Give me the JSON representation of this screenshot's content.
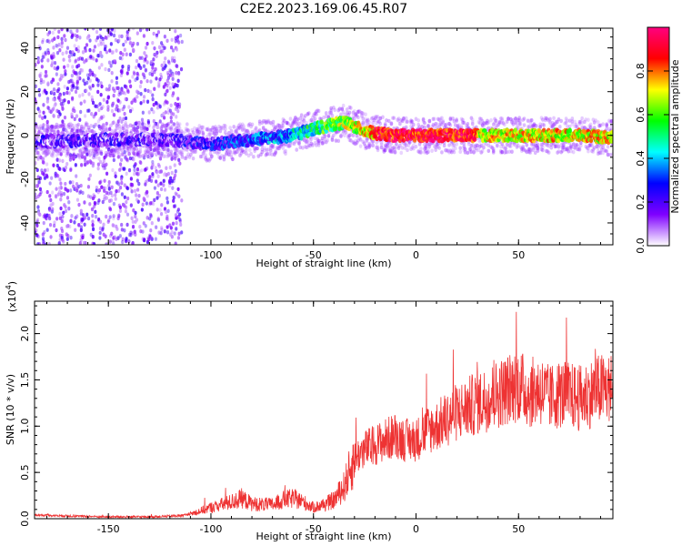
{
  "title": "C2E2.2023.169.06.45.R07",
  "chart_data": [
    {
      "type": "heatmap",
      "xlabel": "Height of straight line (km)",
      "ylabel": "Frequency (Hz)",
      "xlim": [
        -186,
        96
      ],
      "ylim": [
        -50,
        49
      ],
      "x_ticks": [
        -150,
        -100,
        -50,
        0,
        50
      ],
      "x_tick_labels": [
        "-150",
        "-100",
        "-50",
        "0",
        "50"
      ],
      "y_ticks": [
        -40,
        -20,
        0,
        20,
        40
      ],
      "y_tick_labels": [
        "-40",
        "-20",
        "0",
        "20",
        "40"
      ],
      "colorbar": {
        "label": "Normalized spectral amplitude",
        "range": [
          0,
          1
        ],
        "ticks": [
          0,
          0.2,
          0.4,
          0.6,
          0.8
        ],
        "tick_labels": [
          "0.0",
          "0.2",
          "0.4",
          "0.6",
          "0.8"
        ],
        "colormap": [
          "#ffffff",
          "#7f00ff",
          "#0000ff",
          "#00ffff",
          "#00ff00",
          "#ffff00",
          "#ff0000",
          "#ff0080"
        ]
      },
      "ridge": {
        "x": [
          -186,
          -150,
          -120,
          -100,
          -80,
          -60,
          -50,
          -40,
          -35,
          -30,
          -25,
          -20,
          -10,
          0,
          20,
          40,
          60,
          80,
          96
        ],
        "frequency": [
          -3,
          -2,
          -2,
          -4,
          -2,
          0,
          3,
          5,
          6,
          4,
          2,
          1,
          0,
          0,
          0,
          0,
          0,
          0,
          -1
        ]
      }
    },
    {
      "type": "line",
      "xlabel": "Height of straight line (km)",
      "ylabel": "SNR (10 * v/v)",
      "scale_label": "(x10",
      "scale_exponent": "4",
      "scale_close": ")",
      "xlim": [
        -186,
        96
      ],
      "ylim": [
        0,
        2.35
      ],
      "x_ticks": [
        -150,
        -100,
        -50,
        0,
        50
      ],
      "x_tick_labels": [
        "-150",
        "-100",
        "-50",
        "0",
        "50"
      ],
      "y_ticks": [
        0,
        0.5,
        1.0,
        1.5,
        2.0
      ],
      "y_tick_labels": [
        "0.0",
        "0.5",
        "1.0",
        "1.5",
        "2.0"
      ],
      "color": "#ee3333",
      "series": [
        {
          "x": [
            -186,
            -170,
            -150,
            -130,
            -115,
            -110,
            -100,
            -90,
            -85,
            -80,
            -70,
            -65,
            -60,
            -55,
            -50,
            -45,
            -40,
            -35,
            -30,
            -25,
            -20,
            -15,
            -10,
            -5,
            0,
            5,
            10,
            20,
            30,
            40,
            45,
            50,
            55,
            60,
            65,
            70,
            80,
            90,
            96
          ],
          "values": [
            0.04,
            0.03,
            0.02,
            0.02,
            0.03,
            0.05,
            0.12,
            0.18,
            0.22,
            0.16,
            0.15,
            0.2,
            0.22,
            0.18,
            0.12,
            0.15,
            0.2,
            0.35,
            0.65,
            0.75,
            0.8,
            0.85,
            0.9,
            0.85,
            0.85,
            0.95,
            1.0,
            1.15,
            1.25,
            1.35,
            1.4,
            1.45,
            1.35,
            1.4,
            1.3,
            1.35,
            1.3,
            1.4,
            1.4
          ]
        }
      ]
    }
  ]
}
